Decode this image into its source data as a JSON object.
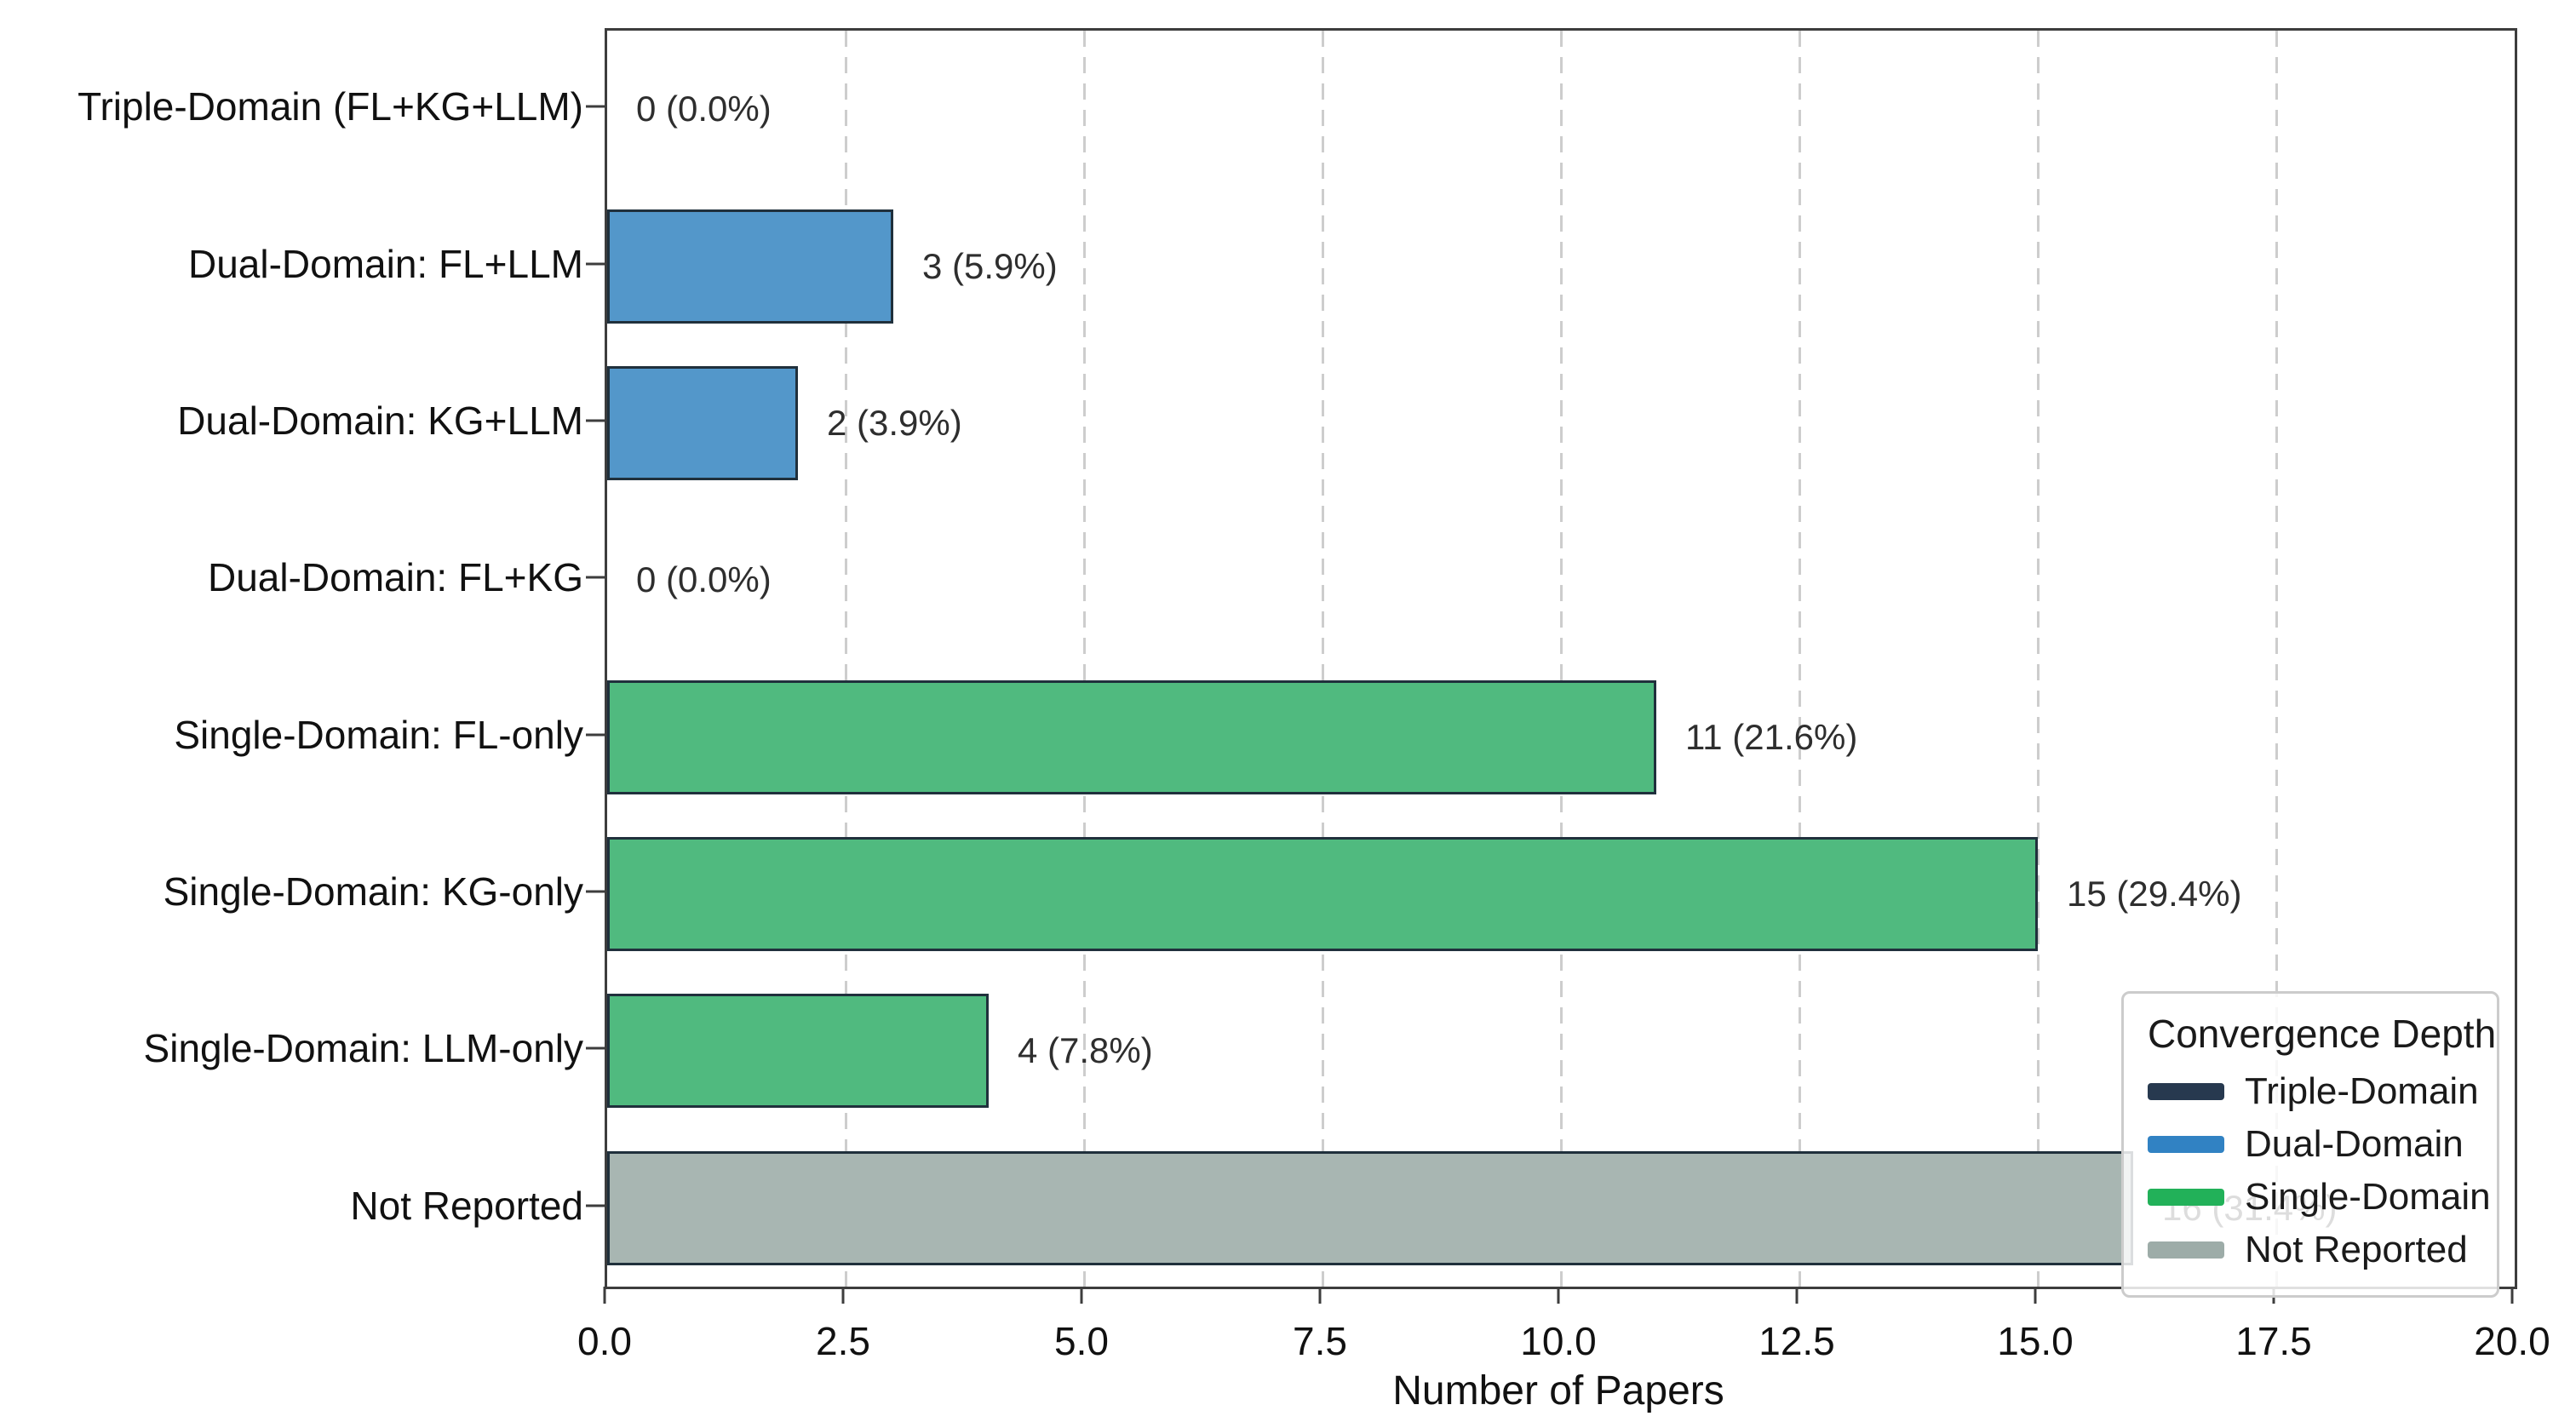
{
  "chart_data": {
    "type": "bar",
    "orientation": "horizontal",
    "xlabel": "Number of Papers",
    "ylabel": "",
    "xlim": [
      0,
      20
    ],
    "xticks": [
      "0.0",
      "2.5",
      "5.0",
      "7.5",
      "10.0",
      "12.5",
      "15.0",
      "17.5",
      "20.0"
    ],
    "grid": {
      "axis": "x",
      "style": "dashed",
      "color": "#cdcdcd"
    },
    "categories": [
      "Triple-Domain (FL+KG+LLM)",
      "Dual-Domain: FL+LLM",
      "Dual-Domain: KG+LLM",
      "Dual-Domain: FL+KG",
      "Single-Domain: FL-only",
      "Single-Domain: KG-only",
      "Single-Domain: LLM-only",
      "Not Reported"
    ],
    "values": [
      0,
      3,
      2,
      0,
      11,
      15,
      4,
      16
    ],
    "value_labels": [
      "0 (0.0%)",
      "3 (5.9%)",
      "2 (3.9%)",
      "0 (0.0%)",
      "11 (21.6%)",
      "15 (29.4%)",
      "4 (7.8%)",
      "16 (31.4%)"
    ],
    "series_groups": [
      "Triple-Domain",
      "Dual-Domain",
      "Dual-Domain",
      "Dual-Domain",
      "Single-Domain",
      "Single-Domain",
      "Single-Domain",
      "Not Reported"
    ],
    "bar_colors": [
      "#27394f",
      "#5397ca",
      "#5397ca",
      "#5397ca",
      "#50ba7f",
      "#50ba7f",
      "#50ba7f",
      "#a8b6b2"
    ],
    "bar_edge_color": "#20303c",
    "legend": {
      "title": "Convergence Depth",
      "position": "lower right",
      "entries": [
        {
          "label": "Triple-Domain",
          "color": "#27394f"
        },
        {
          "label": "Dual-Domain",
          "color": "#3182c3"
        },
        {
          "label": "Single-Domain",
          "color": "#22b159"
        },
        {
          "label": "Not Reported",
          "color": "#9daca8"
        }
      ]
    }
  }
}
